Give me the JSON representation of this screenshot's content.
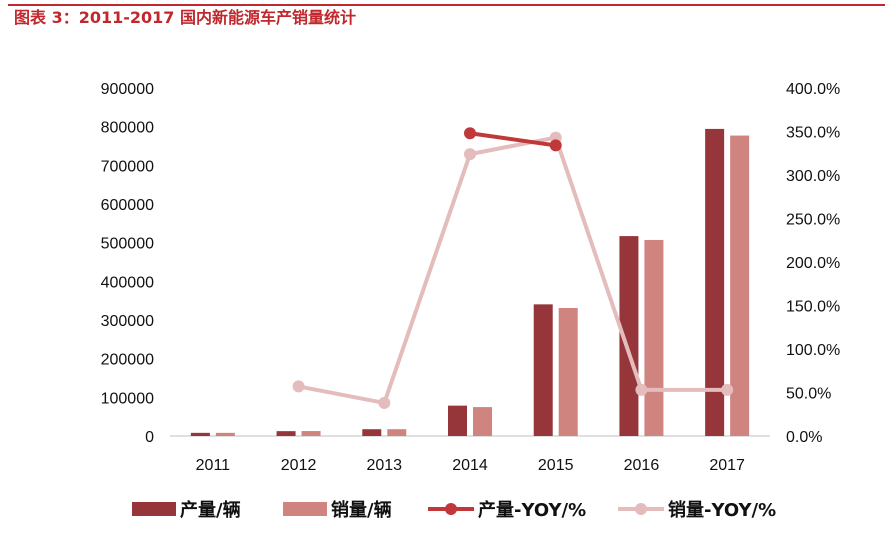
{
  "header": {
    "title": "图表 3：2011-2017 国内新能源车产销量统计"
  },
  "chart_data": {
    "type": "bar",
    "categories": [
      "2011",
      "2012",
      "2013",
      "2014",
      "2015",
      "2016",
      "2017"
    ],
    "y_left_ticks": [
      "900000",
      "800000",
      "700000",
      "600000",
      "500000",
      "400000",
      "300000",
      "200000",
      "100000",
      "0"
    ],
    "y_right_ticks": [
      "400.0%",
      "350.0%",
      "300.0%",
      "250.0%",
      "200.0%",
      "150.0%",
      "100.0%",
      "50.0%",
      "0.0%"
    ],
    "ylim_left": [
      0,
      900000
    ],
    "ylim_right": [
      0,
      400
    ],
    "series": [
      {
        "name": "产量/辆",
        "type": "bar",
        "axis": "left",
        "color": "#96363a",
        "values": [
          8159,
          12552,
          17533,
          78499,
          340471,
          517000,
          794200
        ]
      },
      {
        "name": "销量/辆",
        "type": "bar",
        "axis": "left",
        "color": "#d08480",
        "values": [
          8159,
          12791,
          17642,
          74763,
          331092,
          507000,
          777000
        ]
      },
      {
        "name": "产量-YOY/%",
        "type": "line",
        "axis": "right",
        "color": "#c0383a",
        "values": [
          null,
          null,
          null,
          348,
          334,
          null,
          null
        ]
      },
      {
        "name": "销量-YOY/%",
        "type": "line",
        "axis": "right",
        "color": "#e4bcbc",
        "values": [
          null,
          57,
          38,
          324,
          343,
          53,
          53
        ]
      }
    ],
    "legend_position": "bottom",
    "grid": false
  }
}
